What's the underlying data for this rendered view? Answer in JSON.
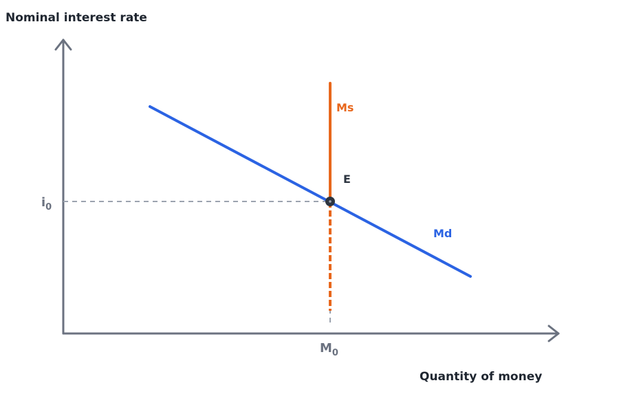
{
  "axes": {
    "y_title": "Nominal interest rate",
    "x_title": "Quantity of money",
    "axis_color": "#6b7280"
  },
  "ticks": {
    "y_tick": {
      "base": "i",
      "sub": "0"
    },
    "x_tick": {
      "base": "M",
      "sub": "0"
    }
  },
  "curves": {
    "money_supply": {
      "label": "Ms",
      "color": "#e8671c"
    },
    "money_demand": {
      "label": "Md",
      "color": "#2b63e3"
    }
  },
  "equilibrium": {
    "label": "E",
    "color": "#2d3540"
  },
  "guide_color": "#9ca3af"
}
